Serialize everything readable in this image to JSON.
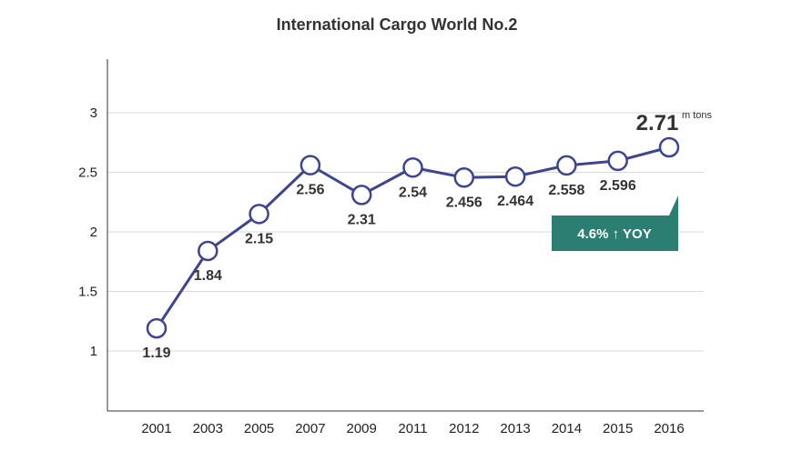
{
  "chart_data": {
    "type": "line",
    "title": "International Cargo World No.2",
    "categories": [
      "2001",
      "2003",
      "2005",
      "2007",
      "2009",
      "2011",
      "2012",
      "2013",
      "2014",
      "2015",
      "2016"
    ],
    "series": [
      {
        "values": [
          1.19,
          1.84,
          2.15,
          2.56,
          2.31,
          2.54,
          2.456,
          2.464,
          2.558,
          2.596,
          2.71
        ]
      }
    ],
    "data_labels": [
      "1.19",
      "1.84",
      "2.15",
      "2.56",
      "2.31",
      "2.54",
      "2.456",
      "2.464",
      "2.558",
      "2.596",
      "2.71"
    ],
    "yticks": [
      "1",
      "1.5",
      "2",
      "2.5",
      "3"
    ],
    "ylim": [
      0.5,
      3.5
    ],
    "unit_label": "m tons",
    "annotation": "4.6% ↑ YOY",
    "grid": true,
    "colors": {
      "line": "#3d4491",
      "grid": "#d9d9d9",
      "axis": "#333333",
      "badge": "#2a7f72"
    }
  }
}
